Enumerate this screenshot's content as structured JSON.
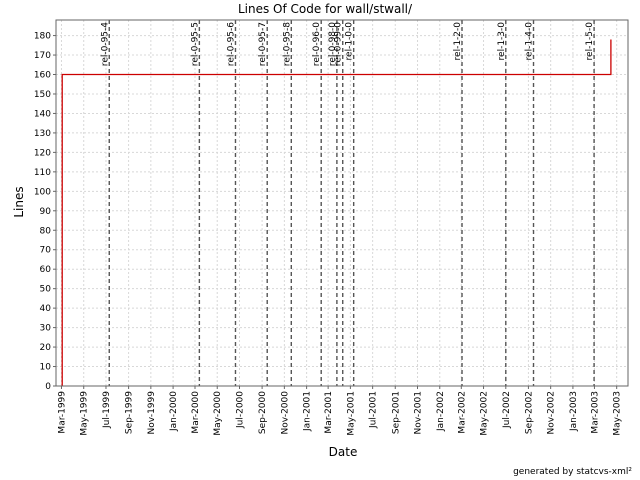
{
  "chart_data": {
    "type": "line",
    "title": "Lines Of Code for wall/stwall/",
    "xlabel": "Date",
    "ylabel": "Lines",
    "footer": "generated by statcvs-xml²",
    "grid": true,
    "legend": "none",
    "xlim": [
      "1999-02-14",
      "2003-06-01"
    ],
    "ylim": [
      0,
      188
    ],
    "x_ticks": [
      "1999-03-01",
      "1999-05-01",
      "1999-07-01",
      "1999-09-01",
      "1999-11-01",
      "2000-01-01",
      "2000-03-01",
      "2000-05-01",
      "2000-07-01",
      "2000-09-01",
      "2000-11-01",
      "2001-01-01",
      "2001-03-01",
      "2001-05-01",
      "2001-07-01",
      "2001-09-01",
      "2001-11-01",
      "2002-01-01",
      "2002-03-01",
      "2002-05-01",
      "2002-07-01",
      "2002-09-01",
      "2002-11-01",
      "2003-01-01",
      "2003-03-01",
      "2003-05-01"
    ],
    "x_tick_labels": [
      "Mar-1999",
      "May-1999",
      "Jul-1999",
      "Sep-1999",
      "Nov-1999",
      "Jan-2000",
      "Mar-2000",
      "May-2000",
      "Jul-2000",
      "Sep-2000",
      "Nov-2000",
      "Jan-2001",
      "Mar-2001",
      "May-2001",
      "Jul-2001",
      "Sep-2001",
      "Nov-2001",
      "Jan-2002",
      "Mar-2002",
      "May-2002",
      "Jul-2002",
      "Sep-2002",
      "Nov-2002",
      "Jan-2003",
      "Mar-2003",
      "May-2003"
    ],
    "y_ticks": [
      0,
      10,
      20,
      30,
      40,
      50,
      60,
      70,
      80,
      90,
      100,
      110,
      120,
      130,
      140,
      150,
      160,
      170,
      180
    ],
    "series": [
      {
        "color": "#cc0000",
        "points": [
          {
            "x": "1999-03-03",
            "y": 0
          },
          {
            "x": "1999-03-03",
            "y": 160
          },
          {
            "x": "2003-04-15",
            "y": 160
          },
          {
            "x": "2003-04-15",
            "y": 178
          }
        ]
      }
    ],
    "annotations": [
      {
        "label": "rel-0-95-4",
        "x": "1999-07-10"
      },
      {
        "label": "rel-0-95-5",
        "x": "2000-03-13"
      },
      {
        "label": "rel-0-95-6",
        "x": "2000-06-20"
      },
      {
        "label": "rel-0-95-7",
        "x": "2000-09-15"
      },
      {
        "label": "rel-0-95-8",
        "x": "2000-11-20"
      },
      {
        "label": "rel-0-96-0",
        "x": "2001-02-10"
      },
      {
        "label": "rel-0-98-0",
        "x": "2001-03-25"
      },
      {
        "label": "rel-0-99-0",
        "x": "2001-04-10"
      },
      {
        "label": "rel-1-0-0",
        "x": "2001-05-10"
      },
      {
        "label": "rel-1-2-0",
        "x": "2002-03-03"
      },
      {
        "label": "rel-1-3-0",
        "x": "2002-07-01"
      },
      {
        "label": "rel-1-4-0",
        "x": "2002-09-15"
      },
      {
        "label": "rel-1-5-0",
        "x": "2003-02-28"
      }
    ],
    "colors": {
      "line": "#cc0000",
      "annotation": "#555555",
      "axis": "#666666",
      "grid": "#d8d8d8"
    }
  }
}
